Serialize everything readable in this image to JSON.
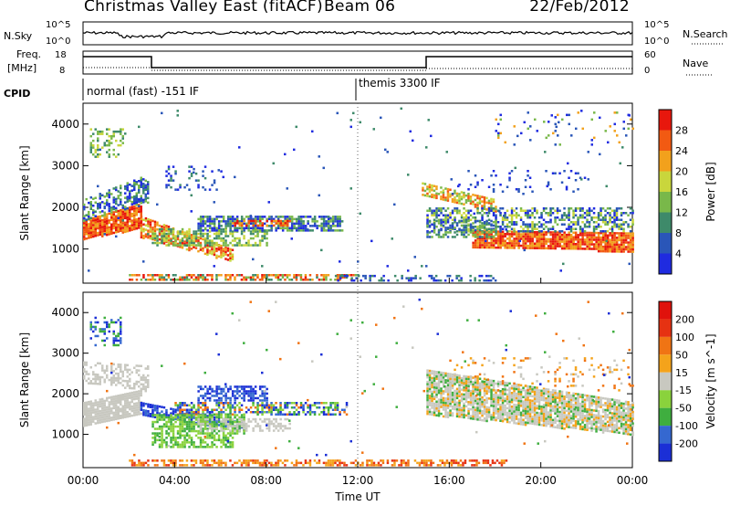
{
  "header": {
    "title": "Christmas Valley East (fitACF)",
    "beam": "Beam 06",
    "date": "22/Feb/2012"
  },
  "top_panels": {
    "nsky_label": "N.Sky",
    "nsearch_label": "N.Search",
    "nsky_ticks": [
      "10^5",
      "10^0"
    ],
    "nsearch_ticks": [
      "10^5",
      "10^0"
    ],
    "freq_label_1": "Freq.",
    "freq_label_2": "[MHz]",
    "freq_ticks": [
      "18",
      "8"
    ],
    "nave_label": "Nave",
    "nave_ticks": [
      "60",
      "0"
    ],
    "cpid_label": "CPID",
    "cpid_mode_1": "normal (fast) -151 IF",
    "cpid_mode_2": "themis 3300 IF"
  },
  "chart_data": [
    {
      "type": "heatmap",
      "name": "Power",
      "ylabel": "Slant Range [km]",
      "xlabel": "",
      "ylim": [
        180,
        4500
      ],
      "yticks": [
        1000,
        2000,
        3000,
        4000
      ],
      "colorbar_label": "Power [dB]",
      "colorbar_ticks": [
        "28",
        "24",
        "20",
        "16",
        "12",
        "8",
        "4"
      ],
      "colors": [
        "#1f2be0",
        "#2a56b8",
        "#3e8a6a",
        "#79b84a",
        "#c9d63c",
        "#f2a11c",
        "#f25a12",
        "#e8170d"
      ]
    },
    {
      "type": "heatmap",
      "name": "Velocity",
      "ylabel": "Slant Range [km]",
      "xlabel": "Time UT",
      "ylim": [
        180,
        4500
      ],
      "yticks": [
        1000,
        2000,
        3000,
        4000
      ],
      "colorbar_label": "Velocity [m s^-1]",
      "colorbar_ticks": [
        "200",
        "100",
        "50",
        "15",
        "-15",
        "-50",
        "-100",
        "-200"
      ],
      "colors": [
        "#1b2fd6",
        "#3568d0",
        "#3fae3f",
        "#8ad23c",
        "#c8c8c0",
        "#f4a31b",
        "#f07414",
        "#e63212",
        "#e0120c"
      ]
    }
  ],
  "x_axis": {
    "ticks": [
      "00:00",
      "04:00",
      "08:00",
      "12:00",
      "16:00",
      "20:00",
      "00:00"
    ]
  }
}
